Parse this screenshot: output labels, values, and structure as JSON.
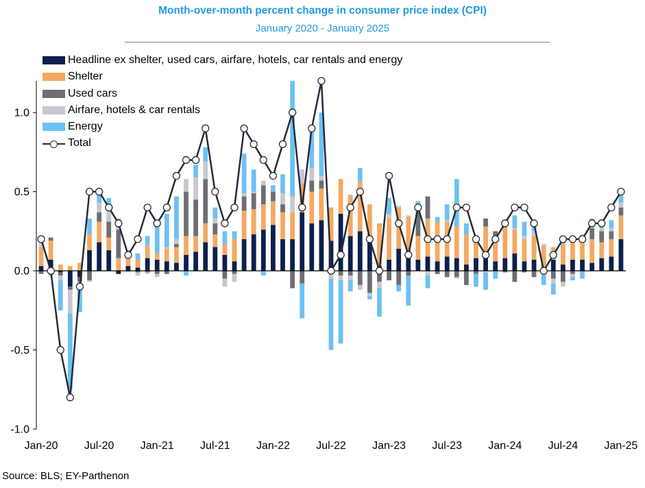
{
  "title": "Month-over-month percent change in consumer price index (CPI)",
  "subtitle": "January 2020 - January 2025",
  "source": "Source: BLS; EY-Parthenon",
  "colors": {
    "core": "#0c1f4d",
    "shelter": "#f4a962",
    "used_cars": "#6d6e74",
    "airfare": "#c8c7d1",
    "energy": "#6ec1f2",
    "total_line": "#222a3a",
    "title": "#1f9be0"
  },
  "chart_data": {
    "type": "bar",
    "stacked": true,
    "title": "Month-over-month percent change in consumer price index (CPI)",
    "subtitle": "January 2020 - January 2025",
    "xlabel": "",
    "ylabel": "",
    "ylim": [
      -1.0,
      1.2
    ],
    "yticks": [
      -1.0,
      -0.5,
      0.0,
      0.5,
      1.0
    ],
    "ytick_labels": [
      "-1.0",
      "-0.5",
      "0.0",
      "0.5",
      "1.0"
    ],
    "grid": false,
    "legend_position": "top-left",
    "categories": [
      "Jan-20",
      "Feb-20",
      "Mar-20",
      "Apr-20",
      "May-20",
      "Jun-20",
      "Jul-20",
      "Aug-20",
      "Sep-20",
      "Oct-20",
      "Nov-20",
      "Dec-20",
      "Jan-21",
      "Feb-21",
      "Mar-21",
      "Apr-21",
      "May-21",
      "Jun-21",
      "Jul-21",
      "Aug-21",
      "Sep-21",
      "Oct-21",
      "Nov-21",
      "Dec-21",
      "Jan-22",
      "Feb-22",
      "Mar-22",
      "Apr-22",
      "May-22",
      "Jun-22",
      "Jul-22",
      "Aug-22",
      "Sep-22",
      "Oct-22",
      "Nov-22",
      "Dec-22",
      "Jan-23",
      "Feb-23",
      "Mar-23",
      "Apr-23",
      "May-23",
      "Jun-23",
      "Jul-23",
      "Aug-23",
      "Sep-23",
      "Oct-23",
      "Nov-23",
      "Dec-23",
      "Jan-24",
      "Feb-24",
      "Mar-24",
      "Apr-24",
      "May-24",
      "Jun-24",
      "Jul-24",
      "Aug-24",
      "Sep-24",
      "Oct-24",
      "Nov-24",
      "Dec-24",
      "Jan-25"
    ],
    "x_tick_labels": [
      {
        "index": 0,
        "label": "Jan-20"
      },
      {
        "index": 6,
        "label": "Jul-20"
      },
      {
        "index": 12,
        "label": "Jan-21"
      },
      {
        "index": 18,
        "label": "Jul-21"
      },
      {
        "index": 24,
        "label": "Jan-22"
      },
      {
        "index": 30,
        "label": "Jul-22"
      },
      {
        "index": 36,
        "label": "Jan-23"
      },
      {
        "index": 42,
        "label": "Jul-23"
      },
      {
        "index": 48,
        "label": "Jan-24"
      },
      {
        "index": 54,
        "label": "Jul-24"
      },
      {
        "index": 60,
        "label": "Jan-25"
      }
    ],
    "series": [
      {
        "name": "Headline ex shelter, used cars, airfare, hotels, car rentals and energy",
        "color": "#0c1f4d",
        "key": "core",
        "values": [
          0.03,
          0.07,
          -0.01,
          -0.1,
          -0.04,
          0.13,
          0.18,
          0.13,
          -0.02,
          0.03,
          0.02,
          0.08,
          0.07,
          0.06,
          0.05,
          0.1,
          0.12,
          0.18,
          0.15,
          0.1,
          0.06,
          0.2,
          0.23,
          0.26,
          0.29,
          0.2,
          0.2,
          0.37,
          0.3,
          0.32,
          0.19,
          0.36,
          0.22,
          0.25,
          0.18,
          0.03,
          0.07,
          0.14,
          0.09,
          0.07,
          0.09,
          0.06,
          0.09,
          0.08,
          0.04,
          0.08,
          0.1,
          0.06,
          0.08,
          0.11,
          0.06,
          0.07,
          0.02,
          0.07,
          0.04,
          0.07,
          0.07,
          0.05,
          0.08,
          0.09,
          0.2
        ]
      },
      {
        "name": "Shelter",
        "color": "#f4a962",
        "key": "shelter",
        "values": [
          0.12,
          0.12,
          0.04,
          0.03,
          0.05,
          0.1,
          0.13,
          0.08,
          0.08,
          0.05,
          0.05,
          0.08,
          0.04,
          0.08,
          0.1,
          0.12,
          0.1,
          0.12,
          0.08,
          0.07,
          0.14,
          0.18,
          0.16,
          0.16,
          0.15,
          0.17,
          0.17,
          0.18,
          0.2,
          0.2,
          0.21,
          0.22,
          0.26,
          0.31,
          0.24,
          0.27,
          0.26,
          0.26,
          0.25,
          0.15,
          0.24,
          0.25,
          0.22,
          0.2,
          0.19,
          0.12,
          0.18,
          0.16,
          0.21,
          0.15,
          0.14,
          0.15,
          0.14,
          0.08,
          0.13,
          0.15,
          0.14,
          0.15,
          0.1,
          0.11,
          0.15
        ]
      },
      {
        "name": "Used cars",
        "color": "#6d6e74",
        "key": "used_cars",
        "values": [
          -0.02,
          0.02,
          -0.02,
          -0.02,
          -0.03,
          -0.06,
          0.06,
          0.1,
          0.18,
          0.04,
          -0.01,
          -0.01,
          -0.02,
          -0.02,
          0.02,
          0.28,
          0.23,
          0.28,
          0.07,
          -0.05,
          -0.02,
          0.09,
          0.1,
          0.12,
          0.06,
          0.05,
          -0.11,
          -0.08,
          0.07,
          0.05,
          -0.02,
          -0.03,
          -0.03,
          -0.09,
          -0.14,
          -0.07,
          -0.06,
          -0.09,
          -0.03,
          0.15,
          0.14,
          -0.02,
          -0.04,
          -0.04,
          -0.09,
          -0.02,
          0.05,
          0.03,
          -0.01,
          -0.07,
          -0.01,
          -0.04,
          -0.02,
          -0.05,
          -0.07,
          -0.02,
          0.01,
          0.07,
          0.07,
          0.05,
          0.05
        ]
      },
      {
        "name": "Airfare, hotels & car rentals",
        "color": "#c8c7d1",
        "key": "airfare",
        "values": [
          0.03,
          -0.01,
          -0.03,
          -0.15,
          -0.05,
          -0.01,
          0.06,
          0.08,
          0.01,
          -0.01,
          -0.02,
          -0.01,
          -0.02,
          0.01,
          0.03,
          0.08,
          0.14,
          0.11,
          0.03,
          -0.05,
          -0.05,
          0.02,
          0.01,
          0.03,
          0.0,
          0.07,
          0.1,
          0.09,
          0.08,
          0.03,
          -0.03,
          -0.03,
          -0.03,
          -0.03,
          -0.02,
          -0.04,
          0.03,
          0.01,
          0.01,
          0.01,
          -0.03,
          0.0,
          0.01,
          -0.01,
          0.0,
          0.0,
          -0.01,
          0.0,
          0.03,
          0.01,
          0.02,
          0.03,
          0.01,
          -0.03,
          -0.03,
          -0.02,
          0.01,
          0.03,
          0.02,
          0.02,
          0.03
        ]
      },
      {
        "name": "Energy",
        "color": "#6ec1f2",
        "key": "energy",
        "values": [
          0.02,
          -0.02,
          -0.19,
          -0.48,
          -0.14,
          0.1,
          0.09,
          0.07,
          0.06,
          0.01,
          0.04,
          0.06,
          0.2,
          0.21,
          0.27,
          -0.03,
          0.08,
          0.09,
          0.07,
          0.08,
          0.05,
          0.25,
          0.14,
          -0.03,
          0.04,
          0.12,
          0.73,
          -0.22,
          0.27,
          0.4,
          -0.45,
          -0.4,
          -0.07,
          0.09,
          -0.02,
          -0.18,
          0.1,
          -0.04,
          -0.19,
          0.06,
          -0.08,
          0.03,
          0.1,
          0.3,
          0.07,
          -0.08,
          -0.11,
          -0.05,
          0.0,
          0.08,
          0.09,
          0.05,
          -0.07,
          -0.07,
          0.03,
          -0.02,
          -0.05,
          0.03,
          0.01,
          0.05,
          0.06
        ]
      },
      {
        "name": "Total",
        "color": "#222a3a",
        "key": "total",
        "type": "line",
        "values": [
          0.2,
          0.0,
          -0.5,
          -0.8,
          -0.1,
          0.5,
          0.5,
          0.4,
          0.3,
          0.1,
          0.2,
          0.4,
          0.3,
          0.4,
          0.6,
          0.7,
          0.7,
          0.9,
          0.5,
          0.3,
          0.4,
          0.9,
          0.8,
          0.7,
          0.6,
          0.8,
          1.0,
          0.4,
          0.9,
          1.2,
          0.0,
          0.1,
          0.4,
          0.5,
          0.2,
          0.0,
          0.6,
          0.3,
          0.1,
          0.4,
          0.2,
          0.2,
          0.2,
          0.4,
          0.4,
          0.2,
          0.1,
          0.2,
          0.3,
          0.4,
          0.4,
          0.3,
          0.0,
          0.1,
          0.2,
          0.2,
          0.2,
          0.3,
          0.3,
          0.4,
          0.5
        ]
      }
    ]
  }
}
